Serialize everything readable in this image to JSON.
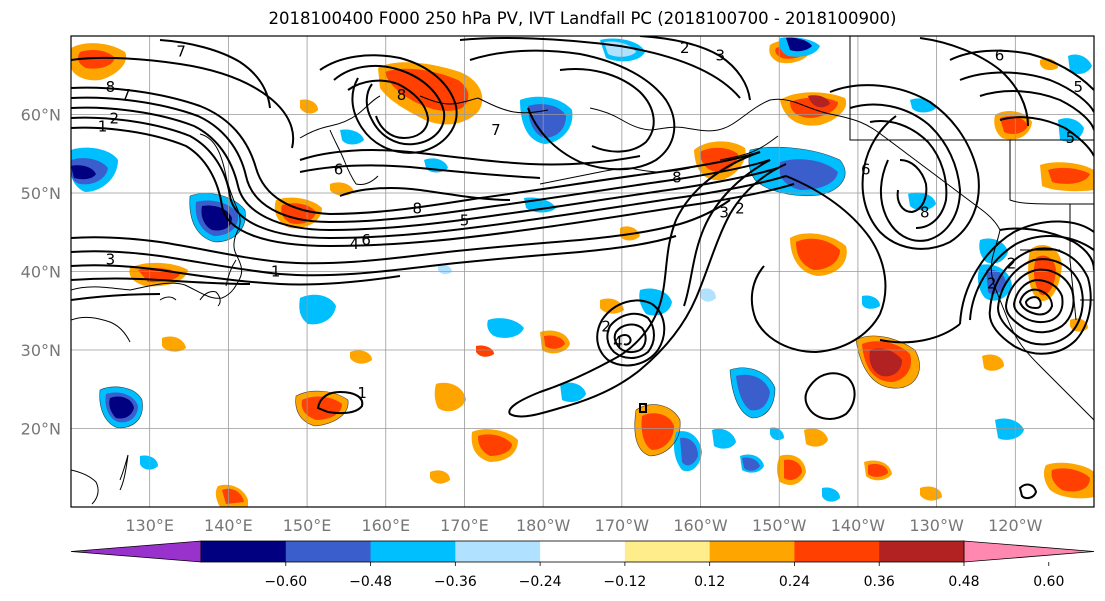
{
  "title": "2018100400 F000 250 hPa PV, IVT Landfall PC (2018100700 - 2018100900)",
  "lat_ticks": [
    {
      "label": "60°N",
      "lat": 60
    },
    {
      "label": "50°N",
      "lat": 50
    },
    {
      "label": "40°N",
      "lat": 40
    },
    {
      "label": "30°N",
      "lat": 30
    },
    {
      "label": "20°N",
      "lat": 20
    }
  ],
  "lon_ticks": [
    {
      "label": "130°E",
      "lon": 130
    },
    {
      "label": "140°E",
      "lon": 140
    },
    {
      "label": "150°E",
      "lon": 150
    },
    {
      "label": "160°E",
      "lon": 160
    },
    {
      "label": "170°E",
      "lon": 170
    },
    {
      "label": "180°W",
      "lon": 180
    },
    {
      "label": "170°W",
      "lon": 190
    },
    {
      "label": "160°W",
      "lon": 200
    },
    {
      "label": "150°W",
      "lon": 210
    },
    {
      "label": "140°W",
      "lon": 220
    },
    {
      "label": "130°W",
      "lon": 230
    },
    {
      "label": "120°W",
      "lon": 240
    }
  ],
  "extent": {
    "lon_min": 120,
    "lon_max": 250,
    "lat_min": 10,
    "lat_max": 70
  },
  "colorbar": {
    "colors": [
      "#9932cc",
      "#000080",
      "#3a5fcd",
      "#00bfff",
      "#b0e2ff",
      "#ffffff",
      "#ffec8b",
      "#ffa500",
      "#ff4000",
      "#b22222",
      "#ff88b0"
    ],
    "tick_labels": [
      "−0.60",
      "−0.48",
      "−0.36",
      "−0.24",
      "−0.12",
      "0.12",
      "0.24",
      "0.36",
      "0.48",
      "0.60"
    ]
  },
  "contour_labels": [
    {
      "text": "7",
      "lon": 134,
      "lat": 68
    },
    {
      "text": "8",
      "lon": 125,
      "lat": 63.5
    },
    {
      "text": "7",
      "lon": 127,
      "lat": 62.5
    },
    {
      "text": "1",
      "lon": 124,
      "lat": 58.5
    },
    {
      "text": "2",
      "lon": 125.5,
      "lat": 59.5
    },
    {
      "text": "7",
      "lon": 174,
      "lat": 58
    },
    {
      "text": "8",
      "lon": 162,
      "lat": 62.5
    },
    {
      "text": "6",
      "lon": 154,
      "lat": 53
    },
    {
      "text": "8",
      "lon": 164,
      "lat": 48
    },
    {
      "text": "5",
      "lon": 170,
      "lat": 46.5
    },
    {
      "text": "4",
      "lon": 156,
      "lat": 43.5
    },
    {
      "text": "6",
      "lon": 157.5,
      "lat": 44
    },
    {
      "text": "3",
      "lon": 125,
      "lat": 41.5
    },
    {
      "text": "1",
      "lon": 146,
      "lat": 40
    },
    {
      "text": "1",
      "lon": 157,
      "lat": 24.5
    },
    {
      "text": "8",
      "lon": 197,
      "lat": 52
    },
    {
      "text": "3",
      "lon": 203,
      "lat": 47.5
    },
    {
      "text": "2",
      "lon": 205,
      "lat": 48
    },
    {
      "text": "2",
      "lon": 198,
      "lat": 68.5
    },
    {
      "text": "3",
      "lon": 202.5,
      "lat": 67.5
    },
    {
      "text": "6",
      "lon": 238,
      "lat": 67.5
    },
    {
      "text": "5",
      "lon": 248,
      "lat": 63.5
    },
    {
      "text": "5",
      "lon": 247,
      "lat": 57
    },
    {
      "text": "8",
      "lon": 228.5,
      "lat": 47.5
    },
    {
      "text": "6",
      "lon": 221,
      "lat": 53
    },
    {
      "text": "2",
      "lon": 237,
      "lat": 38.5
    },
    {
      "text": "2",
      "lon": 239.5,
      "lat": 41
    },
    {
      "text": "2",
      "lon": 188,
      "lat": 33
    },
    {
      "text": "4",
      "lon": 189.5,
      "lat": 31
    }
  ]
}
